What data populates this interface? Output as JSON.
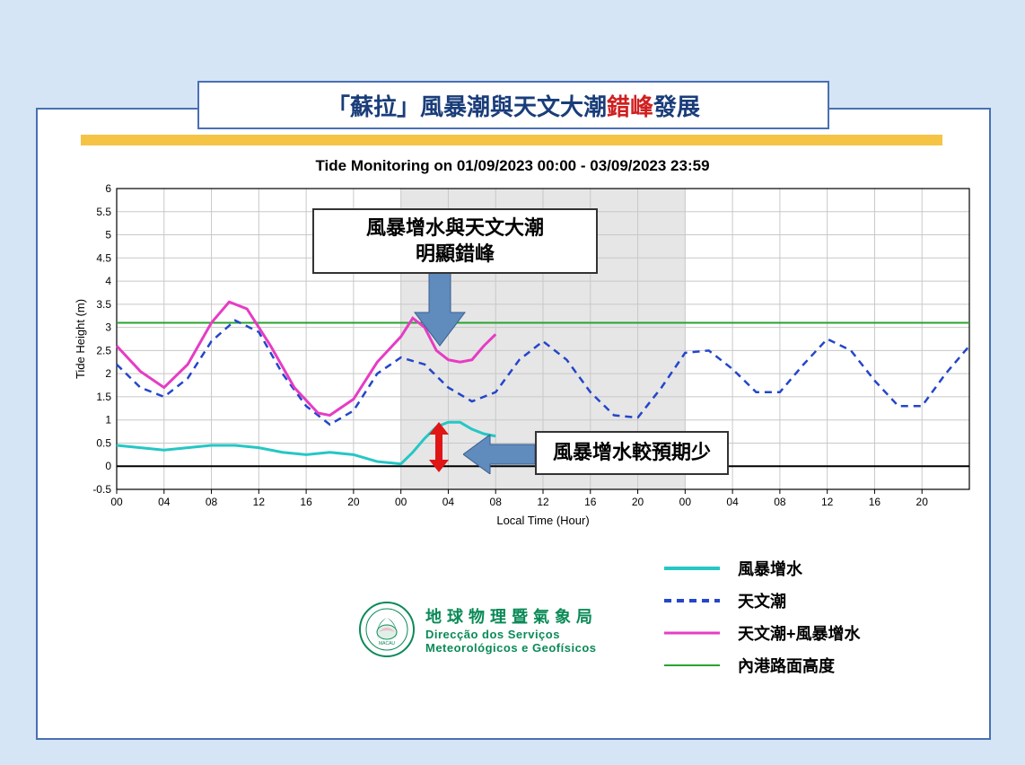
{
  "title": {
    "part1": "「蘇拉」風暴潮與天文大潮",
    "part2": "錯峰",
    "part3": "發展"
  },
  "chart": {
    "type": "line",
    "title": "Tide Monitoring on 01/09/2023 00:00 - 03/09/2023 23:59",
    "xlabel": "Local Time (Hour)",
    "ylabel": "Tide Height (m)",
    "ylim": [
      -0.5,
      6
    ],
    "ytick_step": 0.5,
    "x_range_hours": 72,
    "xtick_step": 4,
    "xtick_labels": [
      "00",
      "04",
      "08",
      "12",
      "16",
      "20",
      "00",
      "04",
      "08",
      "12",
      "16",
      "20",
      "00",
      "04",
      "08",
      "12",
      "16",
      "20"
    ],
    "background_color": "#ffffff",
    "grid_color": "#c8c8c8",
    "shaded_region": {
      "start_hour": 24,
      "end_hour": 48,
      "color": "#e6e6e6"
    },
    "road_level": {
      "value": 3.1,
      "color": "#27a32f",
      "width": 2
    },
    "series": {
      "storm_surge": {
        "color": "#25c7c5",
        "width": 3,
        "dash": "solid",
        "points": [
          [
            0,
            0.45
          ],
          [
            2,
            0.4
          ],
          [
            4,
            0.35
          ],
          [
            6,
            0.4
          ],
          [
            8,
            0.45
          ],
          [
            10,
            0.45
          ],
          [
            12,
            0.4
          ],
          [
            14,
            0.3
          ],
          [
            16,
            0.25
          ],
          [
            18,
            0.3
          ],
          [
            20,
            0.25
          ],
          [
            22,
            0.1
          ],
          [
            24,
            0.05
          ],
          [
            25,
            0.3
          ],
          [
            26,
            0.6
          ],
          [
            27,
            0.85
          ],
          [
            28,
            0.95
          ],
          [
            29,
            0.95
          ],
          [
            30,
            0.8
          ],
          [
            31,
            0.7
          ],
          [
            32,
            0.65
          ]
        ]
      },
      "astro_tide": {
        "color": "#2446c9",
        "width": 2.5,
        "dash": "8,6",
        "points": [
          [
            0,
            2.2
          ],
          [
            2,
            1.7
          ],
          [
            4,
            1.5
          ],
          [
            6,
            1.9
          ],
          [
            8,
            2.7
          ],
          [
            10,
            3.15
          ],
          [
            12,
            2.9
          ],
          [
            14,
            2.0
          ],
          [
            16,
            1.3
          ],
          [
            18,
            0.9
          ],
          [
            20,
            1.2
          ],
          [
            22,
            2.0
          ],
          [
            24,
            2.35
          ],
          [
            26,
            2.2
          ],
          [
            28,
            1.7
          ],
          [
            30,
            1.4
          ],
          [
            32,
            1.6
          ],
          [
            34,
            2.3
          ],
          [
            36,
            2.7
          ],
          [
            38,
            2.3
          ],
          [
            40,
            1.6
          ],
          [
            42,
            1.1
          ],
          [
            44,
            1.05
          ],
          [
            46,
            1.7
          ],
          [
            48,
            2.45
          ],
          [
            50,
            2.5
          ],
          [
            52,
            2.1
          ],
          [
            54,
            1.6
          ],
          [
            56,
            1.6
          ],
          [
            58,
            2.2
          ],
          [
            60,
            2.75
          ],
          [
            62,
            2.5
          ],
          [
            64,
            1.85
          ],
          [
            66,
            1.3
          ],
          [
            68,
            1.3
          ],
          [
            70,
            2.0
          ],
          [
            72,
            2.6
          ]
        ]
      },
      "combined": {
        "color": "#e63cc4",
        "width": 3,
        "dash": "solid",
        "points": [
          [
            0,
            2.6
          ],
          [
            2,
            2.05
          ],
          [
            4,
            1.7
          ],
          [
            6,
            2.2
          ],
          [
            8,
            3.1
          ],
          [
            9.5,
            3.55
          ],
          [
            11,
            3.4
          ],
          [
            13,
            2.6
          ],
          [
            15,
            1.7
          ],
          [
            17,
            1.15
          ],
          [
            18,
            1.1
          ],
          [
            20,
            1.45
          ],
          [
            22,
            2.25
          ],
          [
            24,
            2.8
          ],
          [
            25,
            3.2
          ],
          [
            26,
            3.0
          ],
          [
            27,
            2.5
          ],
          [
            28,
            2.3
          ],
          [
            29,
            2.25
          ],
          [
            30,
            2.3
          ],
          [
            31,
            2.6
          ],
          [
            32,
            2.85
          ]
        ]
      }
    }
  },
  "legend": {
    "items": [
      {
        "key": "storm_surge",
        "label": "風暴增水",
        "color": "#25c7c5",
        "dash": "solid",
        "width": 4
      },
      {
        "key": "astro_tide",
        "label": "天文潮",
        "color": "#2446c9",
        "dash": "8,6",
        "width": 4
      },
      {
        "key": "combined",
        "label": "天文潮+風暴增水",
        "color": "#e63cc4",
        "dash": "solid",
        "width": 3
      },
      {
        "key": "road_level",
        "label": "內港路面高度",
        "color": "#27a32f",
        "dash": "solid",
        "width": 2
      }
    ]
  },
  "callouts": {
    "top": {
      "line1": "風暴增水與天文大潮",
      "line2": "明顯錯峰"
    },
    "right": {
      "text": "風暴增水較預期少"
    }
  },
  "org": {
    "name_cn": "地球物理暨氣象局",
    "name_pt1": "Direcção dos Serviços",
    "name_pt2": "Meteorológicos e Geofísicos"
  },
  "arrow_color": "#5f8bbd",
  "double_arrow_color": "#e01515"
}
